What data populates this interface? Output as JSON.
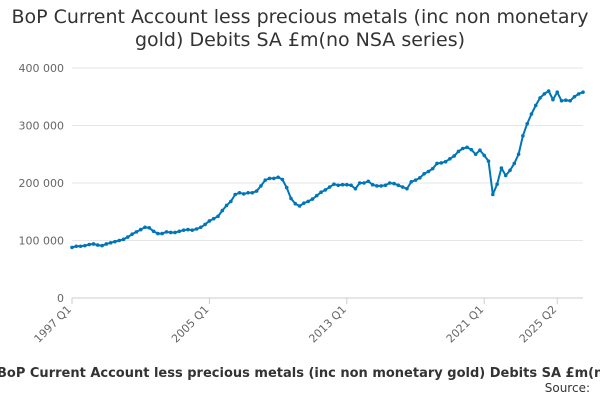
{
  "chart_data": {
    "type": "line",
    "title": "BoP Current Account less precious metals (inc non monetary gold) Debits SA £m(no NSA series)",
    "caption": "BoP Current Account less precious metals (inc non monetary gold) Debits SA £m(no NSA series)",
    "source_label": "Source:",
    "xlabel": "",
    "ylabel": "",
    "ylim": [
      0,
      400000
    ],
    "yticks": [
      0,
      100000,
      200000,
      300000,
      400000
    ],
    "ytick_labels": [
      "0",
      "100 000",
      "200 000",
      "300 000",
      "400 000"
    ],
    "xticks": [
      "1997 Q1",
      "2005 Q1",
      "2013 Q1",
      "2021 Q1",
      "2025 Q2"
    ],
    "grid": true,
    "legend": "none",
    "color": "#0075b8",
    "series": [
      {
        "x_start": "1997 Q1",
        "frequency": "quarterly",
        "values": [
          88000,
          90000,
          90000,
          91000,
          93000,
          94000,
          92000,
          91000,
          94000,
          96000,
          98000,
          100000,
          102000,
          106000,
          111000,
          115000,
          119000,
          123000,
          122000,
          116000,
          112000,
          112000,
          115000,
          114000,
          114000,
          116000,
          118000,
          119000,
          118000,
          120000,
          123000,
          128000,
          134000,
          138000,
          142000,
          152000,
          161000,
          168000,
          180000,
          183000,
          181000,
          183000,
          183000,
          186000,
          195000,
          205000,
          208000,
          208000,
          210000,
          206000,
          192000,
          173000,
          164000,
          160000,
          165000,
          168000,
          172000,
          178000,
          184000,
          188000,
          193000,
          198000,
          196000,
          197000,
          197000,
          196000,
          190000,
          200000,
          200000,
          203000,
          197000,
          195000,
          195000,
          196000,
          200000,
          199000,
          196000,
          193000,
          190000,
          202000,
          205000,
          209000,
          216000,
          220000,
          225000,
          234000,
          235000,
          237000,
          242000,
          247000,
          255000,
          260000,
          262000,
          258000,
          250000,
          257000,
          248000,
          238000,
          180000,
          198000,
          226000,
          213000,
          222000,
          234000,
          250000,
          282000,
          303000,
          320000,
          335000,
          348000,
          355000,
          360000,
          345000,
          358000,
          343000,
          344000,
          343000,
          350000,
          355000,
          358000
        ]
      }
    ]
  }
}
